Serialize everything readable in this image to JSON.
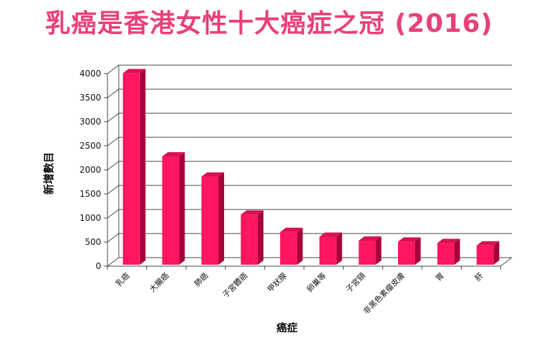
{
  "chart_data": {
    "type": "bar",
    "title": "乳癌是香港女性十大癌症之冠 (2016)",
    "xlabel": "癌症",
    "ylabel": "新增數目",
    "categories": [
      "乳癌",
      "大腸癌",
      "肺癌",
      "子宮體癌",
      "甲狀腺",
      "卵巢等",
      "子宮頸",
      "非黑色素瘤皮膚",
      "胃",
      "肝"
    ],
    "values": [
      4010,
      2280,
      1860,
      1070,
      710,
      610,
      530,
      510,
      480,
      430
    ],
    "ylim": [
      0,
      4000
    ],
    "yticks": [
      0,
      500,
      1000,
      1500,
      2000,
      2500,
      3000,
      3500,
      4000
    ],
    "grid": true,
    "colors": {
      "bar_front": "#ff1660",
      "bar_side": "#a8003a",
      "bar_top": "#d81252",
      "title": "#e8407a"
    }
  }
}
